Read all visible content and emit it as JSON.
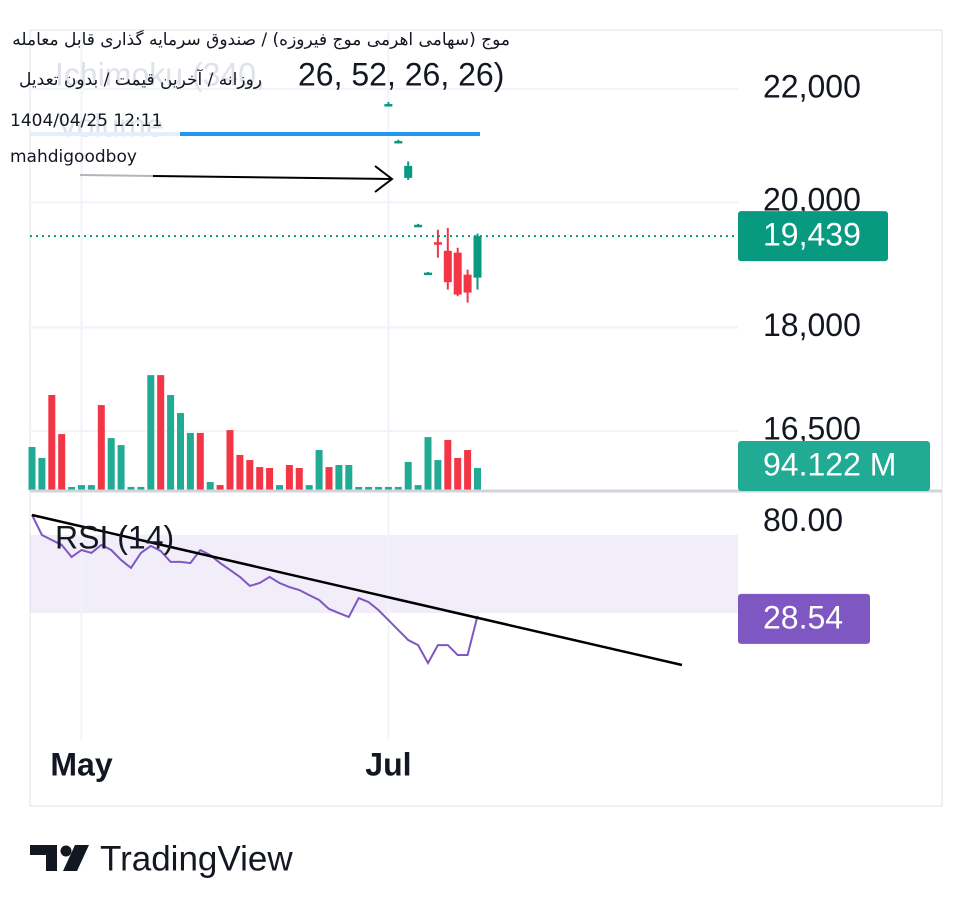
{
  "chart_data": [
    {
      "type": "candlestick",
      "title": "موج (سهامی اهرمی موج فیروزه) / صندوق سرمایه گذاری قابل معامله",
      "subtitle": "روزانه / آخرین قیمت / بدون تعدیل",
      "annotations": [
        "1404/04/25 12:11",
        "mahdigoodboy"
      ],
      "indicator": "Ichimoku (340,",
      "indicator_values": "26, 52, 26, 26)",
      "log_scale": true,
      "grid": true,
      "up_color": "#089981",
      "down_color": "#f23645",
      "ylim": [
        15700,
        23120
      ],
      "yticks": [
        {
          "value": 16500,
          "label": "16,500"
        },
        {
          "value": 18000,
          "label": "18,000"
        },
        {
          "value": 20000,
          "label": "20,000"
        },
        {
          "value": 22000,
          "label": "22,000"
        }
      ],
      "open": [
        null,
        null,
        null,
        null,
        null,
        null,
        null,
        null,
        null,
        null,
        null,
        null,
        null,
        null,
        null,
        null,
        null,
        null,
        null,
        null,
        null,
        null,
        null,
        null,
        null,
        null,
        null,
        null,
        null,
        null,
        null,
        null,
        null,
        null,
        null,
        null,
        21700,
        21040,
        20415,
        19610,
        18840,
        19340,
        19200,
        19170,
        18819,
        18772
      ],
      "high": [
        null,
        null,
        null,
        null,
        null,
        null,
        null,
        null,
        null,
        null,
        null,
        null,
        null,
        null,
        null,
        null,
        null,
        null,
        null,
        null,
        null,
        null,
        null,
        null,
        null,
        null,
        null,
        null,
        null,
        null,
        null,
        null,
        null,
        null,
        null,
        null,
        21760,
        21080,
        20700,
        19640,
        18860,
        19543,
        19575,
        19250,
        18898,
        19480
      ],
      "low": [
        null,
        null,
        null,
        null,
        null,
        null,
        null,
        null,
        null,
        null,
        null,
        null,
        null,
        null,
        null,
        null,
        null,
        null,
        null,
        null,
        null,
        null,
        null,
        null,
        null,
        null,
        null,
        null,
        null,
        null,
        null,
        null,
        null,
        null,
        null,
        null,
        21700,
        21030,
        20380,
        19610,
        18840,
        19090,
        18584,
        18480,
        18382,
        18584
      ],
      "close": [
        null,
        null,
        null,
        null,
        null,
        null,
        null,
        null,
        null,
        null,
        null,
        null,
        null,
        null,
        null,
        null,
        null,
        null,
        null,
        null,
        null,
        null,
        null,
        null,
        null,
        null,
        null,
        null,
        null,
        null,
        null,
        null,
        null,
        null,
        null,
        null,
        21724,
        21059,
        20622,
        19625,
        18851,
        19299,
        18700,
        18506,
        18537,
        19439
      ],
      "close_labels": [
        null,
        null,
        null,
        null,
        null,
        null,
        null,
        null,
        null,
        null,
        null,
        null,
        null,
        null,
        null,
        null,
        null,
        null,
        null,
        null,
        null,
        null,
        null,
        null,
        null,
        null,
        null,
        null,
        null,
        null,
        null,
        null,
        null,
        null,
        null,
        null,
        null,
        null,
        null,
        null,
        null,
        null,
        null,
        null,
        null,
        "19,439"
      ]
    },
    {
      "type": "bar",
      "name": "Volume",
      "ylim": [
        0,
        1966
      ],
      "values": [
        184,
        137,
        406,
        239,
        13,
        21,
        21,
        363,
        222,
        192,
        13,
        13,
        491,
        491,
        406,
        329,
        244,
        244,
        34,
        21,
        256,
        150,
        128,
        98,
        94,
        21,
        107,
        94,
        21,
        171,
        98,
        107,
        107,
        13,
        13,
        13,
        13,
        13,
        120,
        21,
        226,
        128,
        214,
        137,
        171,
        94.122
      ],
      "colors": [
        "#22ab94",
        "#22ab94",
        "#f23645",
        "#f23645",
        "#22ab94",
        "#22ab94",
        "#22ab94",
        "#f23645",
        "#22ab94",
        "#22ab94",
        "#22ab94",
        "#22ab94",
        "#22ab94",
        "#f23645",
        "#22ab94",
        "#22ab94",
        "#22ab94",
        "#f23645",
        "#22ab94",
        "#f23645",
        "#f23645",
        "#f23645",
        "#f23645",
        "#f23645",
        "#f23645",
        "#22ab94",
        "#f23645",
        "#f23645",
        "#22ab94",
        "#22ab94",
        "#f23645",
        "#22ab94",
        "#22ab94",
        "#22ab94",
        "#22ab94",
        "#22ab94",
        "#22ab94",
        "#22ab94",
        "#22ab94",
        "#22ab94",
        "#22ab94",
        "#22ab94",
        "#f23645",
        "#f23645",
        "#f23645",
        "#22ab94"
      ],
      "value_labels": [
        null,
        null,
        null,
        null,
        null,
        null,
        null,
        null,
        null,
        null,
        null,
        null,
        null,
        null,
        null,
        null,
        null,
        null,
        null,
        null,
        null,
        null,
        null,
        null,
        null,
        null,
        null,
        null,
        null,
        null,
        null,
        null,
        null,
        null,
        null,
        null,
        null,
        null,
        null,
        null,
        null,
        null,
        null,
        null,
        null,
        "94.122 M"
      ]
    },
    {
      "type": "line",
      "name": "RSI (14)",
      "color": "#7e57c2",
      "categories": [
        null,
        null,
        null,
        null,
        null,
        "May",
        null,
        null,
        null,
        null,
        null,
        null,
        null,
        null,
        null,
        null,
        null,
        null,
        null,
        null,
        null,
        null,
        null,
        null,
        null,
        null,
        null,
        null,
        null,
        null,
        null,
        null,
        null,
        null,
        null,
        null,
        "Jul",
        null,
        null,
        null,
        null,
        null,
        null,
        null,
        null,
        null
      ],
      "ylim": [
        -35,
        92
      ],
      "yticks": [
        {
          "value": 80,
          "label": "80.00"
        }
      ],
      "band": [
        30,
        70
      ],
      "values": [
        80.3,
        70,
        67.4,
        64.9,
        58.7,
        62.3,
        60.8,
        64.9,
        62.3,
        57.2,
        53.1,
        60.8,
        64.4,
        61.8,
        56.2,
        56.2,
        55.6,
        62.3,
        59.7,
        55.6,
        52.1,
        48.5,
        43.9,
        45.4,
        48.5,
        45.4,
        43.3,
        41.8,
        39.2,
        36.7,
        32.1,
        30,
        28,
        37.7,
        35.6,
        31.5,
        26.4,
        21.3,
        16.2,
        13.6,
        4.4,
        13.6,
        13.6,
        8.5,
        8.5,
        28.54
      ]
    }
  ]
}
